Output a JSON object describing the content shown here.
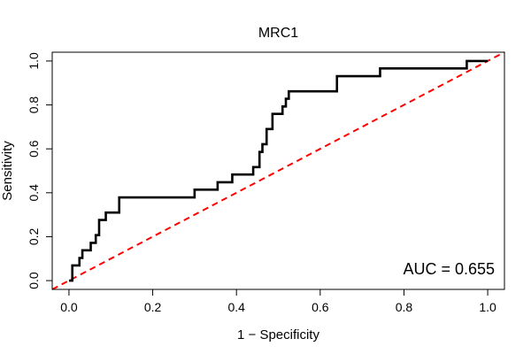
{
  "chart_data": {
    "type": "line",
    "title": "MRC1",
    "xlabel": "1 − Specificity",
    "ylabel": "Sensitivity",
    "xlim": [
      -0.04,
      1.04
    ],
    "ylim": [
      -0.04,
      1.04
    ],
    "x_ticks": [
      0.0,
      0.2,
      0.4,
      0.6,
      0.8,
      1.0
    ],
    "x_tick_labels": [
      "0.0",
      "0.2",
      "0.4",
      "0.6",
      "0.8",
      "1.0"
    ],
    "y_ticks": [
      0.0,
      0.2,
      0.4,
      0.6,
      0.8,
      1.0
    ],
    "y_tick_labels": [
      "0.0",
      "0.2",
      "0.4",
      "0.6",
      "0.8",
      "1.0"
    ],
    "grid": false,
    "annotation": "AUC = 0.655",
    "series": [
      {
        "name": "ROC curve",
        "color": "#000000",
        "line_style": "solid",
        "x": [
          0.0,
          0.008,
          0.008,
          0.025,
          0.025,
          0.032,
          0.032,
          0.052,
          0.052,
          0.064,
          0.064,
          0.072,
          0.072,
          0.088,
          0.088,
          0.12,
          0.12,
          0.3,
          0.3,
          0.355,
          0.355,
          0.39,
          0.39,
          0.44,
          0.44,
          0.455,
          0.455,
          0.462,
          0.462,
          0.472,
          0.472,
          0.486,
          0.486,
          0.51,
          0.51,
          0.518,
          0.518,
          0.525,
          0.525,
          0.64,
          0.64,
          0.743,
          0.743,
          0.95,
          0.95,
          1.0
        ],
        "y": [
          0.0,
          0.0,
          0.069,
          0.069,
          0.103,
          0.103,
          0.138,
          0.138,
          0.172,
          0.172,
          0.207,
          0.207,
          0.276,
          0.276,
          0.31,
          0.31,
          0.379,
          0.379,
          0.414,
          0.414,
          0.448,
          0.448,
          0.483,
          0.483,
          0.517,
          0.517,
          0.586,
          0.586,
          0.621,
          0.621,
          0.69,
          0.69,
          0.759,
          0.759,
          0.793,
          0.793,
          0.828,
          0.828,
          0.862,
          0.862,
          0.931,
          0.931,
          0.966,
          0.966,
          1.0,
          1.0
        ]
      },
      {
        "name": "reference diagonal",
        "color": "#ff0000",
        "line_style": "dashed",
        "x": [
          -0.04,
          1.04
        ],
        "y": [
          -0.04,
          1.04
        ]
      }
    ]
  }
}
